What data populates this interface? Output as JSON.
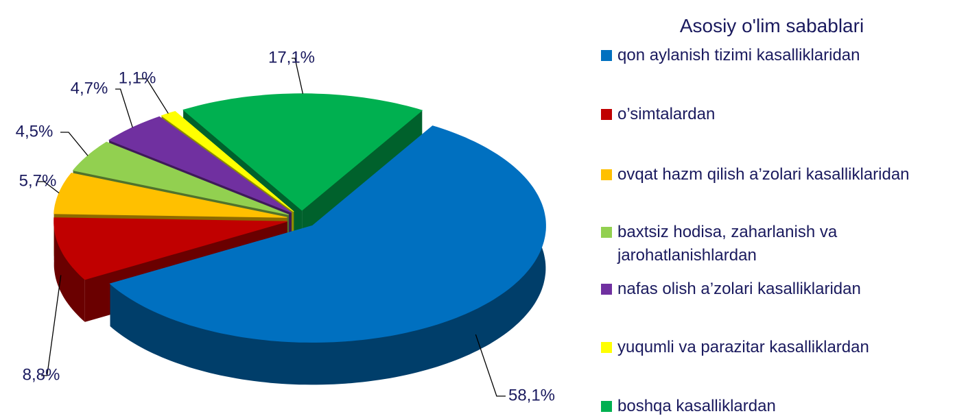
{
  "chart_data": {
    "type": "pie3d",
    "legend_title": "Asosiy o'lim sabablari",
    "categories": [
      "qon aylanish tizimi kasalliklaridan",
      "o’simtalardan",
      "ovqat hazm qilish a’zolari kasalliklaridan",
      "baxtsiz hodisa, zaharlanish va jarohatlanishlardan",
      "nafas olish a’zolari kasalliklaridan",
      "yuqumli va parazitar kasalliklardan",
      "boshqa kasalliklardan"
    ],
    "values": [
      58.1,
      8.8,
      5.7,
      4.5,
      4.7,
      1.1,
      17.1
    ],
    "value_labels": [
      "58,1%",
      "8,8%",
      "5,7%",
      "4,5%",
      "4,7%",
      "1,1%",
      "17,1%"
    ],
    "colors": [
      "#0070c0",
      "#c00000",
      "#ffc000",
      "#92d050",
      "#7030a0",
      "#ffff00",
      "#00b050"
    ],
    "legend": "right"
  }
}
